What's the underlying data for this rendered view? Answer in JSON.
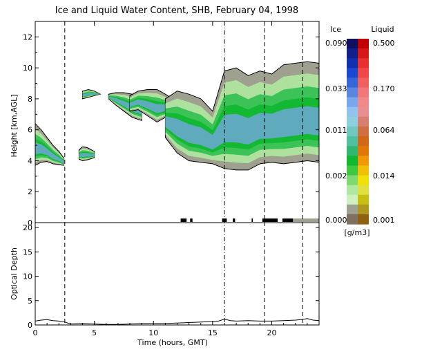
{
  "title": "Ice and Liquid Water Content, SHB, February 04, 1998",
  "top_panel": {
    "ylabel": "Height [km,AGL]",
    "ylim": [
      0,
      13
    ],
    "yticks": [
      "0",
      "2",
      "4",
      "6",
      "8",
      "10",
      "12"
    ]
  },
  "bottom_panel": {
    "ylabel": "Optical Depth",
    "ylim": [
      0,
      21
    ],
    "yticks": [
      "0",
      "5",
      "10",
      "15",
      "20"
    ]
  },
  "xlabel": "Time (hours, GMT)",
  "xlim": [
    0,
    24
  ],
  "xticks": [
    "0",
    "5",
    "10",
    "15",
    "20"
  ],
  "colorbar": {
    "ice_header": "Ice",
    "liquid_header": "Liquid",
    "unit": "[g/m3]",
    "ice_labels": [
      "0.090",
      "0.033",
      "0.011",
      "0.002",
      "0.000"
    ],
    "liquid_labels": [
      "0.500",
      "0.170",
      "0.064",
      "0.014",
      "0.001"
    ],
    "ice_colors": [
      "#101060",
      "#10208a",
      "#1030b0",
      "#1a48d0",
      "#3566d8",
      "#5a86e0",
      "#7aa6ee",
      "#8fc4f0",
      "#8ed0e0",
      "#70c8c0",
      "#50c0a0",
      "#30b870",
      "#10b830",
      "#40c840",
      "#80d870",
      "#b0e8a0",
      "#d0f0c0",
      "#a0a090",
      "#807060"
    ],
    "liquid_colors": [
      "#c00000",
      "#d81818",
      "#e83030",
      "#f04848",
      "#f06060",
      "#f07878",
      "#f08a8a",
      "#e89090",
      "#d88070",
      "#d07040",
      "#d06818",
      "#e07808",
      "#f09808",
      "#f0c008",
      "#f0e008",
      "#e0e040",
      "#c8c010",
      "#b09820",
      "#906010"
    ]
  },
  "chart_data": {
    "type": "heatmap",
    "title": "Ice and Liquid Water Content, SHB, February 04, 1998",
    "xlabel": "Time (hours, GMT)",
    "xlim": [
      0,
      24
    ],
    "x_ticks": [
      0,
      5,
      10,
      15,
      20
    ],
    "panels": [
      {
        "name": "water_content",
        "ylabel": "Height [km,AGL]",
        "ylim": [
          0,
          13
        ],
        "y_ticks": [
          0,
          2,
          4,
          6,
          8,
          10,
          12
        ],
        "cloud_layers": [
          {
            "t": [
              0,
              0.5,
              1.0,
              1.5,
              2.0,
              2.4
            ],
            "base": [
              3.7,
              3.9,
              3.95,
              3.8,
              3.75,
              3.7
            ],
            "top": [
              6.4,
              6.0,
              5.5,
              5.0,
              4.6,
              4.2
            ],
            "phase": "ice"
          },
          {
            "t": [
              3.7,
              4.0,
              4.4,
              5.0
            ],
            "base": [
              4.1,
              4.0,
              4.05,
              4.2
            ],
            "top": [
              4.7,
              4.9,
              4.85,
              4.6
            ],
            "phase": "ice"
          },
          {
            "t": [
              4.0,
              4.5,
              5.0,
              5.5
            ],
            "base": [
              8.0,
              8.1,
              8.2,
              8.3
            ],
            "top": [
              8.5,
              8.6,
              8.5,
              8.3
            ],
            "phase": "ice"
          },
          {
            "t": [
              6.2,
              6.8,
              7.5,
              8.2,
              9.0
            ],
            "base": [
              8.0,
              7.6,
              7.2,
              6.8,
              6.6
            ],
            "top": [
              8.3,
              8.4,
              8.4,
              8.3,
              8.0
            ],
            "phase": "ice"
          },
          {
            "t": [
              8.0,
              8.7,
              9.5,
              10.3,
              11.0,
              11.6
            ],
            "base": [
              7.2,
              7.3,
              6.9,
              6.5,
              6.8,
              6.2
            ],
            "top": [
              8.2,
              8.5,
              8.6,
              8.6,
              8.3,
              8.0
            ],
            "phase": "ice"
          },
          {
            "t": [
              11.0,
              12,
              13,
              14,
              15,
              16,
              17,
              18,
              19,
              20,
              21,
              22,
              23,
              24
            ],
            "base": [
              5.5,
              4.5,
              4.0,
              3.9,
              3.8,
              3.5,
              3.4,
              3.4,
              3.8,
              3.9,
              3.8,
              3.9,
              4.0,
              3.9
            ],
            "top": [
              8.0,
              8.5,
              8.3,
              8.0,
              7.2,
              9.8,
              10.0,
              9.5,
              9.8,
              9.6,
              10.2,
              10.3,
              10.4,
              10.3
            ],
            "phase": "ice"
          }
        ],
        "precip_ticks": [
          [
            12.3,
            12.8
          ],
          [
            13.1,
            13.3
          ],
          [
            15.8,
            16.2
          ],
          [
            16.7,
            16.9
          ],
          [
            18.3,
            18.4
          ],
          [
            19.2,
            20.5
          ],
          [
            20.9,
            21.8
          ],
          [
            21.8,
            24
          ]
        ],
        "dashed_lines": [
          2.5,
          16.0,
          19.4,
          22.6
        ]
      },
      {
        "name": "optical_depth",
        "ylabel": "Optical Depth",
        "ylim": [
          0,
          21
        ],
        "y_ticks": [
          0,
          5,
          10,
          15,
          20
        ],
        "series": [
          {
            "x": [
              0,
              0.5,
              1,
              1.5,
              2,
              2.5,
              3,
              4,
              5,
              6,
              7,
              8,
              9,
              10,
              11,
              12,
              13,
              14,
              15,
              15.5,
              16,
              16.5,
              17,
              18,
              19,
              20,
              21,
              22,
              22.5,
              23,
              23.5,
              24
            ],
            "y": [
              0.8,
              1.0,
              1.1,
              0.9,
              0.8,
              0.6,
              0.2,
              0.3,
              0.2,
              0.1,
              0.1,
              0.2,
              0.3,
              0.3,
              0.3,
              0.4,
              0.5,
              0.6,
              0.7,
              0.8,
              1.2,
              0.9,
              0.8,
              0.9,
              0.8,
              0.8,
              0.9,
              1.0,
              1.1,
              1.3,
              1.0,
              0.9
            ]
          }
        ]
      }
    ]
  }
}
